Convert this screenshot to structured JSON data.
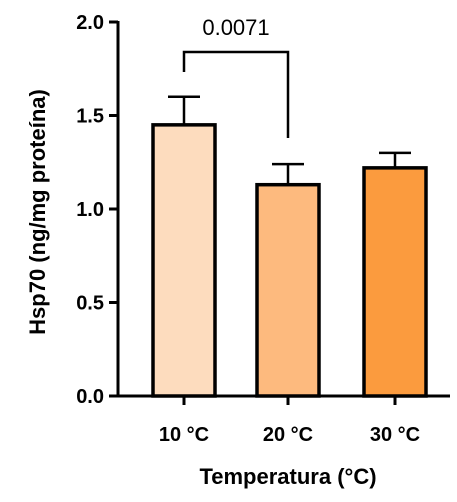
{
  "chart_data": {
    "type": "bar",
    "title": "",
    "xlabel": "Temperatura (°C)",
    "ylabel": "Hsp70 (ng/mg proteína)",
    "categories": [
      "10 °C",
      "20 °C",
      "30 °C"
    ],
    "values": [
      1.45,
      1.13,
      1.22
    ],
    "errors": [
      0.15,
      0.11,
      0.08
    ],
    "colors": [
      "#FDDCBE",
      "#FDBA7E",
      "#FB9B3E"
    ],
    "ylim": [
      0,
      2.0
    ],
    "yticks": [
      0.0,
      0.5,
      1.0,
      1.5,
      2.0
    ],
    "ytick_labels": [
      "0.0",
      "0.5",
      "1.0",
      "1.5",
      "2.0"
    ],
    "grid": false,
    "significance": [
      {
        "from": 0,
        "to": 1,
        "label": "0.0071"
      }
    ]
  }
}
